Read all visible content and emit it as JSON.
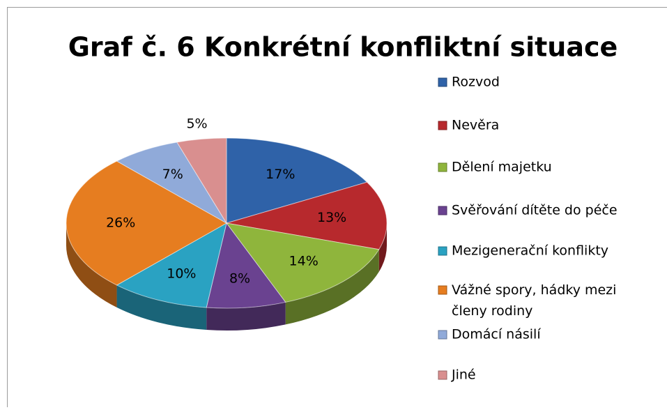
{
  "chart_data": {
    "type": "pie",
    "title": "Graf č. 6 Konkrétní konfliktní situace",
    "categories": [
      "Rozvod",
      "Nevěra",
      "Dělení majetku",
      "Svěřování dítěte do péče",
      "Mezigenerační konflikty",
      "Vážné spory, hádky mezi členy rodiny",
      "Domácí násilí",
      "Jiné"
    ],
    "values": [
      17,
      13,
      14,
      8,
      10,
      26,
      7,
      5
    ],
    "value_labels": [
      "17%",
      "13%",
      "14%",
      "8%",
      "10%",
      "26%",
      "7%",
      "5%"
    ],
    "colors": [
      "#2f62a8",
      "#b7292d",
      "#8fb53c",
      "#6a4290",
      "#2aa2c2",
      "#e67d20",
      "#90aad9",
      "#d98f8f"
    ],
    "legend": "right"
  }
}
